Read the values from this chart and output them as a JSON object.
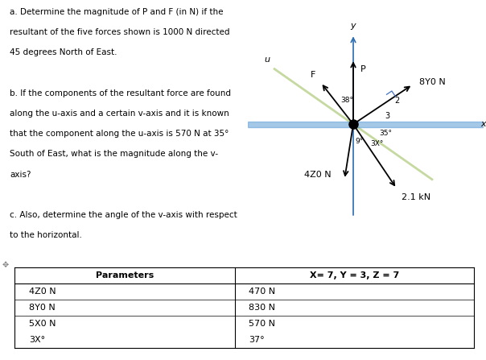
{
  "text_left_lines": [
    "a. Determine the magnitude of P and F (in N) if the",
    "resultant of the five forces shown is 1000 N directed",
    "45 degrees North of East.",
    "",
    "b. If the components of the resultant force are found",
    "along the u-axis and a certain v-axis and it is known",
    "that the component along the u-axis is 570 N at 35°",
    "South of East, what is the magnitude along the v-",
    "axis?",
    "",
    "c. Also, determine the angle of the v-axis with respect",
    "to the horizontal."
  ],
  "table_headers": [
    "Parameters",
    "X= 7, Y = 3, Z = 7"
  ],
  "table_rows": [
    [
      "4Z0 N",
      "470 N"
    ],
    [
      "8Y0 N",
      "830 N"
    ],
    [
      "5X0 N",
      "570 N"
    ],
    [
      "3X°",
      "37°"
    ]
  ],
  "bg_color": "#ffffff",
  "axis_color": "#5b9bd5",
  "uv_axis_color": "#c5d9a0",
  "arrow_color": "#000000",
  "ra_color": "#4472c4",
  "text_fontsize": 7.5,
  "diag_fontsize": 8.0,
  "table_fontsize": 8.0
}
